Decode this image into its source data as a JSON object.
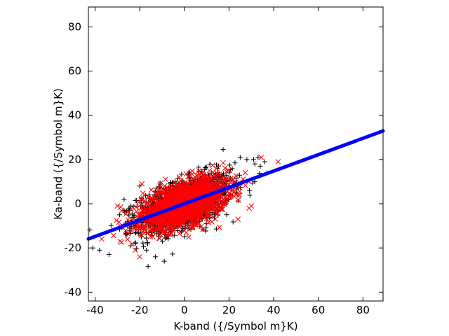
{
  "chart_data": {
    "type": "scatter",
    "title": "",
    "xlabel": "K-band ({/Symbol m}K)",
    "ylabel": "Ka-band ({/Symbol m}K)",
    "xlim": [
      -43,
      89
    ],
    "ylim": [
      -44,
      89
    ],
    "xticks": [
      -40,
      -20,
      0,
      20,
      40,
      60,
      80
    ],
    "yticks": [
      -40,
      -20,
      0,
      20,
      40,
      60,
      80
    ],
    "grid": false,
    "legend": "none",
    "series": [
      {
        "marker": "plus",
        "color": "#000000",
        "cluster": {
          "center": [
            0,
            0
          ],
          "sd_x": 10.5,
          "sd_y": 6.5,
          "correlation": 0.55,
          "count": 1500
        },
        "outliers": [
          [
            -38,
            -21
          ],
          [
            -41,
            -20
          ],
          [
            -9,
            -26
          ],
          [
            33,
            21
          ],
          [
            34,
            17
          ],
          [
            36,
            19
          ],
          [
            28,
            20
          ],
          [
            -27,
            2
          ],
          [
            -29,
            -5
          ],
          [
            -17,
            -21
          ],
          [
            -24,
            -19
          ],
          [
            -20,
            8
          ],
          [
            25,
            21
          ],
          [
            37,
            14
          ],
          [
            31,
            20
          ],
          [
            -13,
            -24
          ]
        ]
      },
      {
        "marker": "cross",
        "color": "#ff0000",
        "cluster": {
          "center": [
            0,
            0
          ],
          "sd_x": 9.5,
          "sd_y": 5.5,
          "correlation": 0.55,
          "count": 1800
        },
        "outliers": [
          [
            42,
            19
          ],
          [
            -37,
            -16
          ],
          [
            -20,
            -24
          ],
          [
            -19,
            9
          ],
          [
            30,
            -1
          ],
          [
            29,
            -2
          ],
          [
            -22,
            -21
          ],
          [
            24,
            -7
          ],
          [
            -30,
            -1
          ]
        ]
      },
      {
        "marker": "line",
        "color": "#0000ff",
        "fit": {
          "slope": 0.37,
          "intercept": 0
        },
        "x_range": [
          -43,
          89
        ]
      }
    ]
  }
}
